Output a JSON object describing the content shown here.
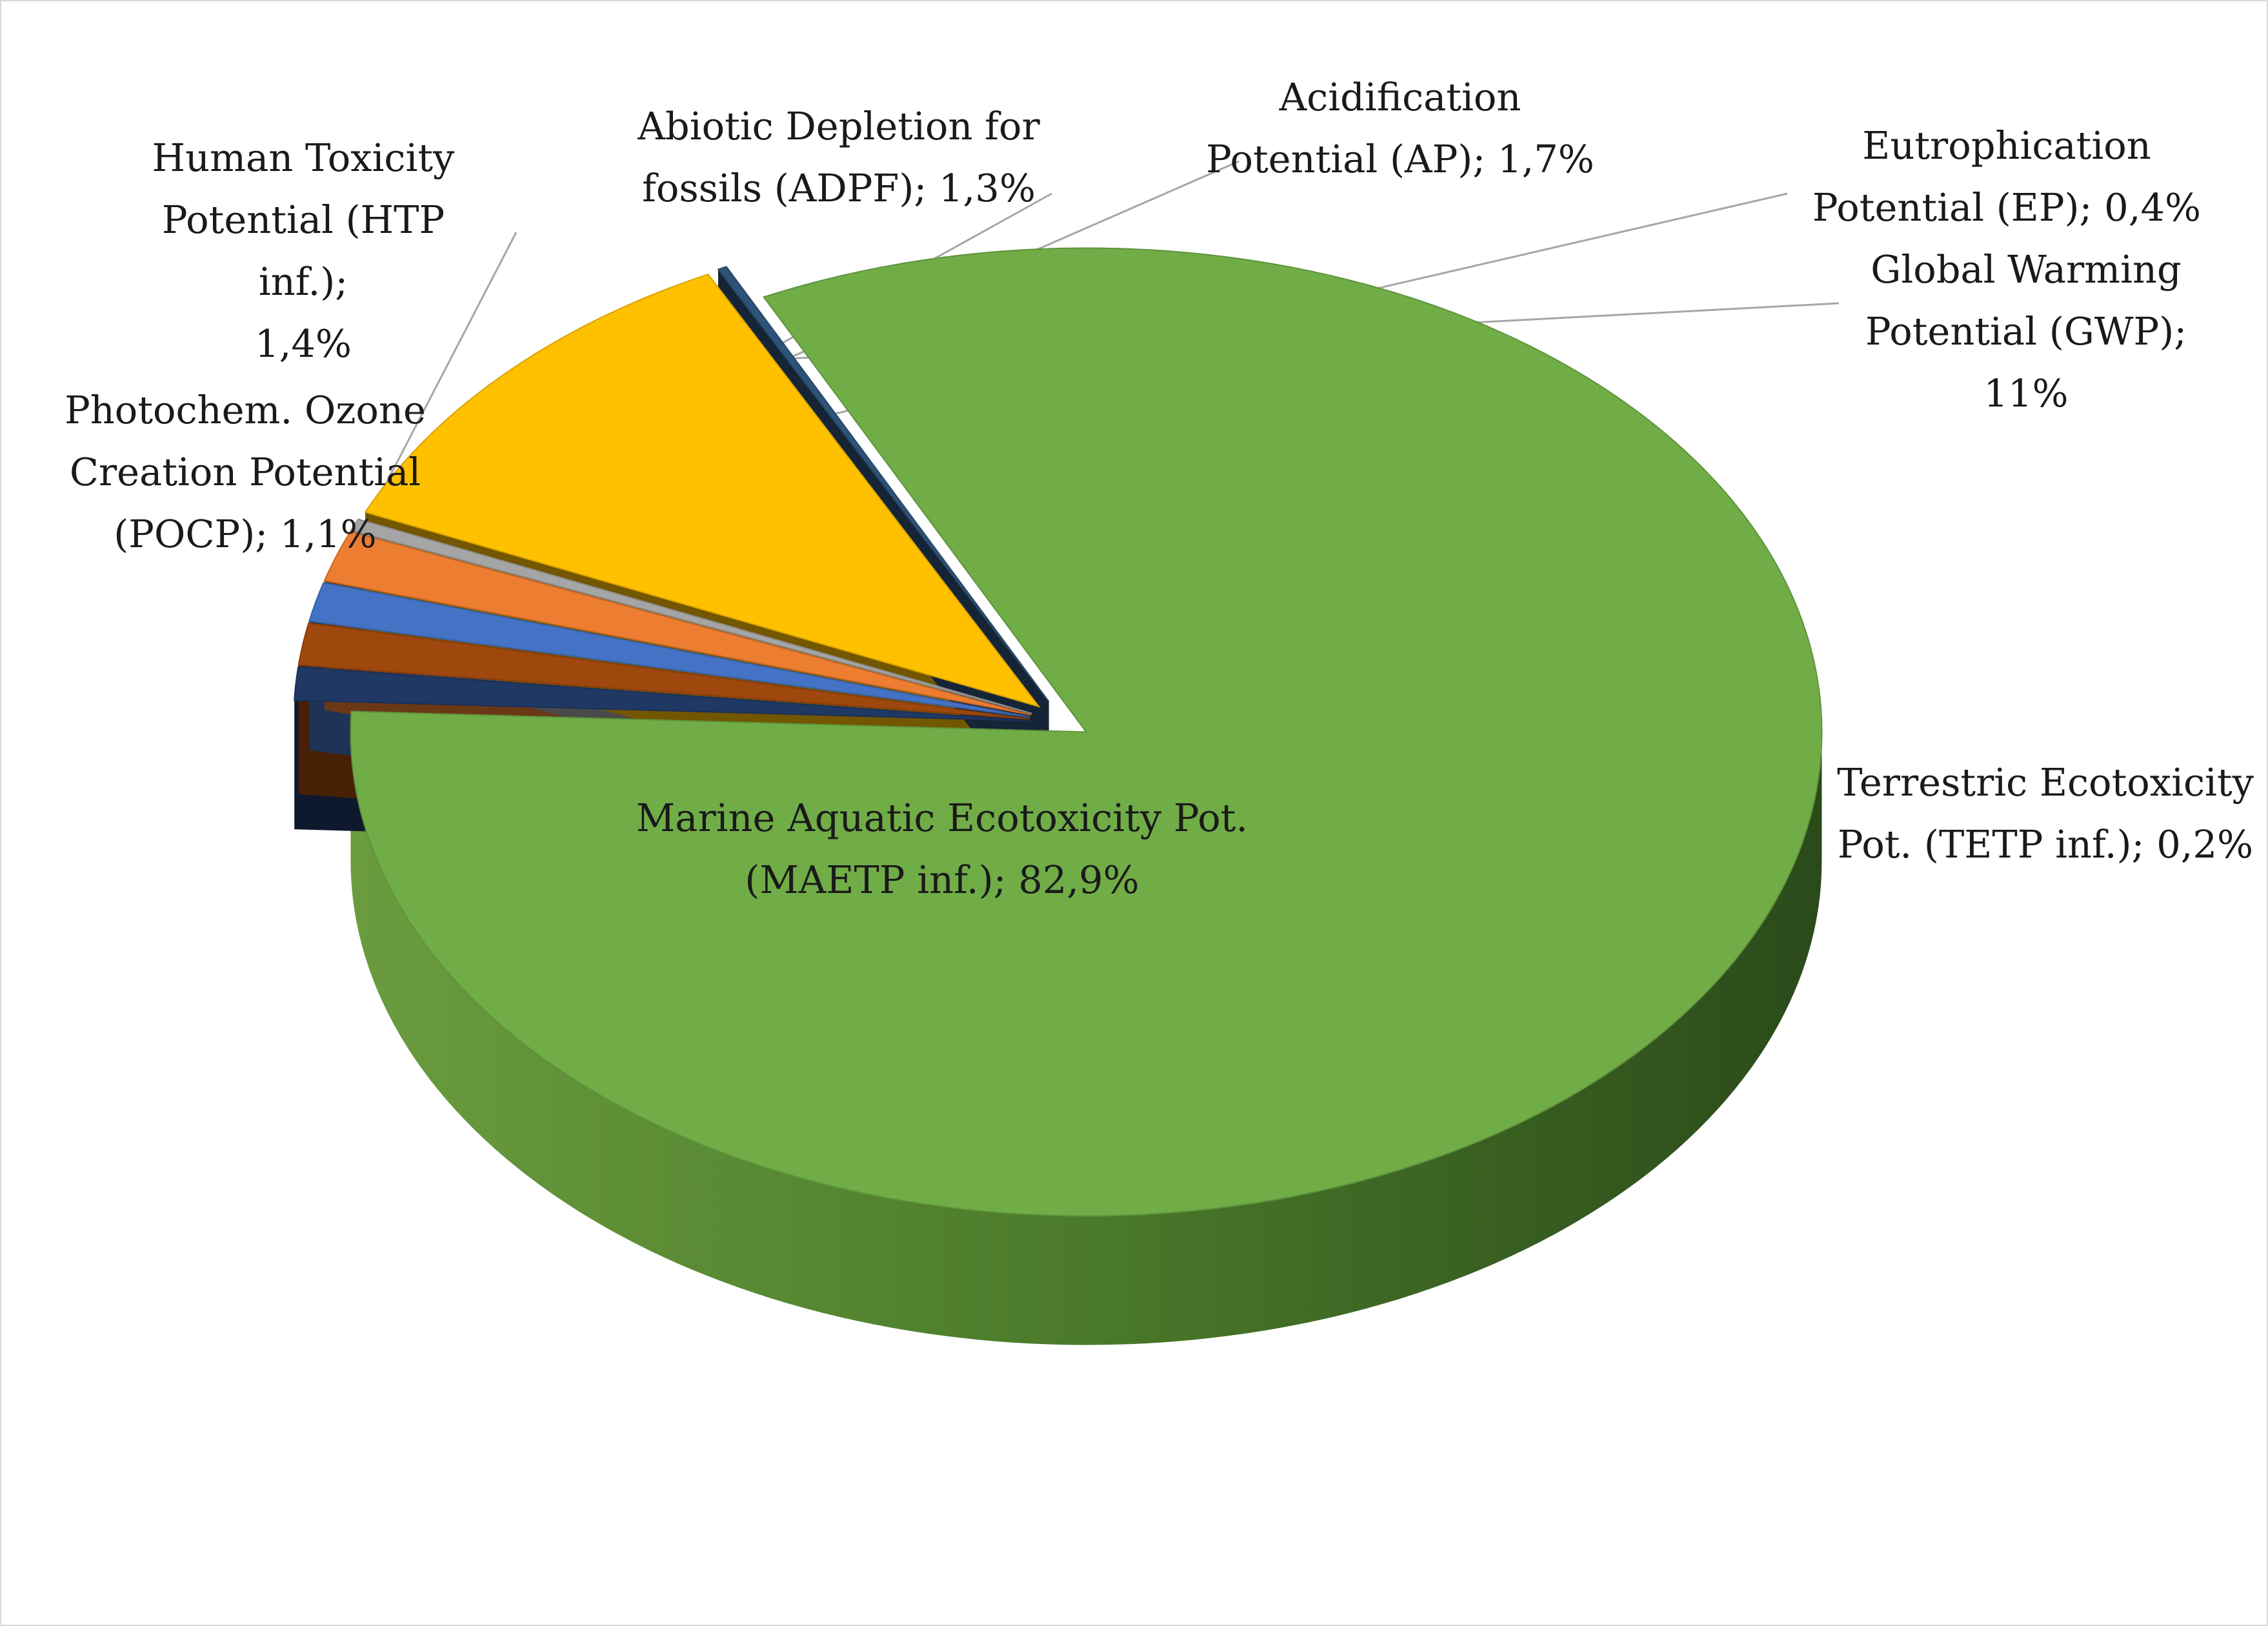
{
  "chart_data": {
    "type": "pie",
    "style": "3d-exploded",
    "title": "",
    "slices": [
      {
        "label": "Marine Aquatic Ecotoxicity Pot. (MAETP inf.); 82,9%",
        "value": 82.9,
        "color": "#70ad47"
      },
      {
        "label": "Photochem. Ozone Creation Potential (POCP); 1,1%",
        "value": 1.1,
        "color": "#203864"
      },
      {
        "label": "Human Toxicity Potential (HTP inf.); 1,4%",
        "value": 1.4,
        "color": "#9e480e"
      },
      {
        "label": "Abiotic Depletion for fossils (ADPF); 1,3%",
        "value": 1.3,
        "color": "#4472c4"
      },
      {
        "label": "Acidification Potential (AP); 1,7%",
        "value": 1.7,
        "color": "#ed7d31"
      },
      {
        "label": "Eutrophication Potential (EP); 0,4%",
        "value": 0.4,
        "color": "#a5a5a5"
      },
      {
        "label": "Global Warming Potential (GWP); 11%",
        "value": 11.0,
        "color": "#ffc000"
      },
      {
        "label": "Terrestric Ecotoxicity Pot. (TETP inf.); 0,2%",
        "value": 0.2,
        "color": "#2e5378"
      }
    ]
  },
  "labels": {
    "maetp": "Marine Aquatic Ecotoxicity Pot.\n(MAETP inf.); 82,9%",
    "pocp": "Photochem. Ozone\nCreation Potential\n(POCP); 1,1%",
    "htp": "Human Toxicity\nPotential (HTP inf.);\n1,4%",
    "adpf": "Abiotic Depletion for\nfossils (ADPF); 1,3%",
    "ap": "Acidification\nPotential (AP); 1,7%",
    "ep": "Eutrophication\nPotential (EP); 0,4%",
    "gwp": "Global Warming\nPotential (GWP);\n11%",
    "tetp": "Terrestric Ecotoxicity\nPot. (TETP inf.); 0,2%"
  }
}
